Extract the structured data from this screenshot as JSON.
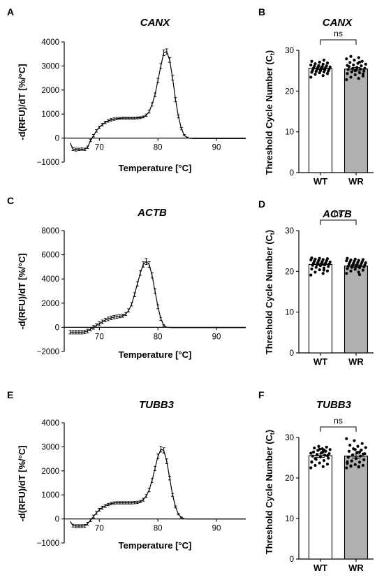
{
  "chart_data": [
    {
      "panel": "A",
      "type": "line",
      "title": "CANX",
      "xlabel": "Temperature [°C]",
      "ylabel": "-d(RFU)/dT [%/°C]",
      "xlim": [
        64,
        95
      ],
      "ylim": [
        -1000,
        4000
      ],
      "xticks": [
        70,
        80,
        90
      ],
      "xtick_labels": [
        "70",
        "80",
        "90"
      ],
      "yticks": [
        -1000,
        0,
        1000,
        2000,
        3000,
        4000
      ],
      "ytick_labels": [
        "−1000",
        "0",
        "1000",
        "2000",
        "3000",
        "4000"
      ],
      "x": [
        65,
        65.5,
        66,
        66.5,
        67,
        67.5,
        68,
        68.5,
        69,
        69.5,
        70,
        70.5,
        71,
        71.5,
        72,
        72.5,
        73,
        73.5,
        74,
        74.5,
        75,
        75.5,
        76,
        76.5,
        77,
        77.5,
        78,
        78.5,
        79,
        79.5,
        80,
        80.5,
        81,
        81.5,
        82,
        82.5,
        83,
        83.5,
        84,
        84.5,
        85,
        85.5,
        86,
        86.5,
        87,
        87.5,
        88,
        88.5,
        89,
        89.5,
        90,
        90.5,
        91,
        91.5,
        92,
        92.5,
        93,
        93.5,
        94,
        94.5,
        95
      ],
      "y": [
        -200,
        -460,
        -480,
        -470,
        -460,
        -470,
        -380,
        -100,
        100,
        300,
        450,
        560,
        650,
        710,
        760,
        790,
        810,
        820,
        830,
        830,
        830,
        830,
        830,
        840,
        850,
        880,
        950,
        1100,
        1400,
        1800,
        2400,
        3000,
        3550,
        3600,
        3250,
        2500,
        1600,
        900,
        400,
        120,
        20,
        -10,
        -20,
        -20,
        -20,
        -20,
        -20,
        -20,
        -20,
        -20,
        -20,
        -20,
        -20,
        -20,
        -20,
        -20,
        -20,
        -20,
        -20,
        -20,
        -20
      ],
      "err": [
        0,
        60,
        60,
        50,
        50,
        50,
        50,
        50,
        50,
        50,
        50,
        50,
        50,
        50,
        50,
        50,
        50,
        40,
        40,
        40,
        40,
        40,
        40,
        40,
        40,
        40,
        50,
        60,
        70,
        80,
        90,
        100,
        120,
        110,
        100,
        90,
        80,
        60,
        40,
        30,
        20,
        0,
        0,
        0,
        0,
        0,
        0,
        0,
        0,
        0,
        0,
        0,
        0,
        0,
        0,
        0,
        0,
        0,
        0,
        0,
        0
      ]
    },
    {
      "panel": "B",
      "type": "bar",
      "title": "CANX",
      "ylabel": "Threshold Cycle Number (C",
      "ylabel_sub": "t",
      "ylabel_close": ")",
      "categories": [
        "WT",
        "WR"
      ],
      "values": [
        25.6,
        25.4
      ],
      "sem": [
        0.3,
        0.4
      ],
      "bar_fill": [
        "#ffffff",
        "#b0b0b0"
      ],
      "ylim": [
        0,
        30
      ],
      "yticks": [
        0,
        10,
        20,
        30
      ],
      "ytick_labels": [
        "0",
        "10",
        "20",
        "30"
      ],
      "significance": "ns",
      "points": [
        [
          23.4,
          23.8,
          24.1,
          24.3,
          24.5,
          24.6,
          24.7,
          24.8,
          24.9,
          25.0,
          25.1,
          25.2,
          25.3,
          25.4,
          25.5,
          25.6,
          25.7,
          25.8,
          25.9,
          26.0,
          26.1,
          26.2,
          26.3,
          26.4,
          26.6,
          26.7,
          26.9,
          27.1,
          27.3,
          27.6
        ],
        [
          22.8,
          23.1,
          23.4,
          23.7,
          24.0,
          24.3,
          24.5,
          24.7,
          24.9,
          25.1,
          25.3,
          25.4,
          25.5,
          25.6,
          25.8,
          26.0,
          26.2,
          26.4,
          26.6,
          26.8,
          27.0,
          27.3,
          27.6,
          27.9,
          28.2,
          28.5,
          24.2,
          25.0,
          26.3,
          27.1
        ]
      ]
    },
    {
      "panel": "C",
      "type": "line",
      "title": "ACTB",
      "xlabel": "Temperature [°C]",
      "ylabel": "-d(RFU)/dT [%/°C]",
      "xlim": [
        64,
        95
      ],
      "ylim": [
        -2000,
        8000
      ],
      "xticks": [
        70,
        80,
        90
      ],
      "xtick_labels": [
        "70",
        "80",
        "90"
      ],
      "yticks": [
        -2000,
        0,
        2000,
        4000,
        6000,
        8000
      ],
      "ytick_labels": [
        "−2000",
        "0",
        "2000",
        "4000",
        "6000",
        "8000"
      ],
      "x": [
        65,
        65.5,
        66,
        66.5,
        67,
        67.5,
        68,
        68.5,
        69,
        69.5,
        70,
        70.5,
        71,
        71.5,
        72,
        72.5,
        73,
        73.5,
        74,
        74.5,
        75,
        75.5,
        76,
        76.5,
        77,
        77.5,
        78,
        78.5,
        79,
        79.5,
        80,
        80.5,
        81,
        81.5,
        82,
        82.5,
        83,
        83.5,
        84,
        84.5,
        85,
        85.5,
        86,
        86.5,
        87,
        87.5,
        88,
        88.5,
        89,
        89.5,
        90,
        90.5,
        91,
        91.5,
        92,
        92.5,
        93,
        93.5,
        94,
        94.5,
        95
      ],
      "y": [
        -400,
        -400,
        -400,
        -400,
        -400,
        -380,
        -300,
        -150,
        0,
        150,
        300,
        450,
        600,
        700,
        780,
        840,
        880,
        920,
        960,
        1100,
        1400,
        1900,
        2700,
        3600,
        4500,
        5200,
        5450,
        5200,
        4300,
        3000,
        1700,
        700,
        150,
        0,
        -20,
        -30,
        -30,
        -30,
        -30,
        -30,
        -30,
        -30,
        -30,
        -30,
        -30,
        -30,
        -30,
        -30,
        -30,
        -30,
        -30,
        -30,
        -30,
        -30,
        -30,
        -30,
        -30,
        -30,
        -30,
        -30,
        -30
      ],
      "err": [
        150,
        150,
        150,
        150,
        150,
        150,
        150,
        150,
        150,
        150,
        150,
        150,
        150,
        150,
        150,
        140,
        140,
        130,
        130,
        130,
        130,
        140,
        160,
        180,
        200,
        220,
        250,
        240,
        220,
        200,
        160,
        120,
        60,
        0,
        0,
        0,
        0,
        0,
        0,
        0,
        0,
        0,
        0,
        0,
        0,
        0,
        0,
        0,
        0,
        0,
        0,
        0,
        0,
        0,
        0,
        0,
        0,
        0,
        0,
        0,
        0
      ]
    },
    {
      "panel": "D",
      "type": "bar",
      "title": "ACTB",
      "ylabel": "Threshold Cycle Number (C",
      "ylabel_sub": "t",
      "ylabel_close": ")",
      "categories": [
        "WT",
        "WR"
      ],
      "values": [
        21.7,
        21.3
      ],
      "sem": [
        0.3,
        0.3
      ],
      "bar_fill": [
        "#ffffff",
        "#b0b0b0"
      ],
      "ylim": [
        0,
        30
      ],
      "yticks": [
        0,
        10,
        20,
        30
      ],
      "ytick_labels": [
        "0",
        "10",
        "20",
        "30"
      ],
      "significance": "ns",
      "points": [
        [
          19.1,
          19.5,
          19.8,
          20.1,
          20.4,
          20.6,
          20.8,
          21.0,
          21.2,
          21.4,
          21.5,
          21.6,
          21.7,
          21.8,
          21.9,
          22.0,
          22.1,
          22.2,
          22.3,
          22.4,
          22.5,
          22.6,
          22.7,
          22.8,
          22.9,
          23.0,
          23.1,
          23.2,
          23.3,
          20.3
        ],
        [
          19.5,
          19.8,
          20.1,
          20.3,
          20.5,
          20.7,
          20.9,
          21.0,
          21.1,
          21.2,
          21.3,
          21.4,
          21.5,
          21.6,
          21.7,
          21.8,
          21.9,
          22.0,
          22.1,
          22.2,
          22.3,
          22.4,
          22.5,
          22.6,
          22.7,
          22.8,
          22.9,
          23.0,
          23.2,
          19.2
        ]
      ]
    },
    {
      "panel": "E",
      "type": "line",
      "title": "TUBB3",
      "xlabel": "Temperature [°C]",
      "ylabel": "-d(RFU)/dT [%/°C]",
      "xlim": [
        64,
        95
      ],
      "ylim": [
        -1000,
        4000
      ],
      "xticks": [
        70,
        80,
        90
      ],
      "xtick_labels": [
        "70",
        "80",
        "90"
      ],
      "yticks": [
        -1000,
        0,
        1000,
        2000,
        3000,
        4000
      ],
      "ytick_labels": [
        "−1000",
        "0",
        "1000",
        "2000",
        "3000",
        "4000"
      ],
      "x": [
        65,
        65.5,
        66,
        66.5,
        67,
        67.5,
        68,
        68.5,
        69,
        69.5,
        70,
        70.5,
        71,
        71.5,
        72,
        72.5,
        73,
        73.5,
        74,
        74.5,
        75,
        75.5,
        76,
        76.5,
        77,
        77.5,
        78,
        78.5,
        79,
        79.5,
        80,
        80.5,
        81,
        81.5,
        82,
        82.5,
        83,
        83.5,
        84,
        84.5,
        85,
        85.5,
        86,
        86.5,
        87,
        87.5,
        88,
        88.5,
        89,
        89.5,
        90,
        90.5,
        91,
        91.5,
        92,
        92.5,
        93,
        93.5,
        94,
        94.5,
        95
      ],
      "y": [
        -100,
        -280,
        -300,
        -300,
        -300,
        -290,
        -200,
        -50,
        100,
        250,
        380,
        470,
        540,
        600,
        640,
        660,
        670,
        670,
        670,
        670,
        670,
        670,
        680,
        690,
        720,
        800,
        950,
        1200,
        1600,
        2100,
        2600,
        2900,
        2850,
        2400,
        1700,
        1000,
        500,
        200,
        60,
        10,
        0,
        0,
        0,
        0,
        0,
        0,
        0,
        0,
        0,
        0,
        0,
        0,
        0,
        0,
        0,
        0,
        0,
        0,
        0,
        0,
        0
      ],
      "err": [
        0,
        60,
        60,
        60,
        60,
        60,
        60,
        60,
        60,
        60,
        60,
        60,
        60,
        50,
        50,
        50,
        50,
        50,
        50,
        50,
        50,
        50,
        50,
        50,
        50,
        60,
        60,
        70,
        80,
        90,
        100,
        120,
        110,
        100,
        80,
        60,
        40,
        30,
        20,
        0,
        0,
        0,
        0,
        0,
        0,
        0,
        0,
        0,
        0,
        0,
        0,
        0,
        0,
        0,
        0,
        0,
        0,
        0,
        0,
        0,
        0
      ]
    },
    {
      "panel": "F",
      "type": "bar",
      "title": "TUBB3",
      "ylabel": "Threshold Cycle Number (C",
      "ylabel_sub": "t",
      "ylabel_close": ")",
      "categories": [
        "WT",
        "WR"
      ],
      "values": [
        25.5,
        25.4
      ],
      "sem": [
        0.4,
        0.5
      ],
      "bar_fill": [
        "#ffffff",
        "#b0b0b0"
      ],
      "ylim": [
        0,
        30
      ],
      "yticks": [
        0,
        10,
        20,
        30
      ],
      "ytick_labels": [
        "0",
        "10",
        "20",
        "30"
      ],
      "significance": "ns",
      "points": [
        [
          22.5,
          22.8,
          23.1,
          23.4,
          23.7,
          24.0,
          24.3,
          24.6,
          24.9,
          25.2,
          25.4,
          25.6,
          25.8,
          26.0,
          26.2,
          26.4,
          26.6,
          26.8,
          27.0,
          27.2,
          27.4,
          27.6,
          27.8,
          26.1,
          26.5,
          24.8,
          25.5,
          27.1,
          23.9,
          26.9
        ],
        [
          22.5,
          22.7,
          22.9,
          23.1,
          23.3,
          23.6,
          23.9,
          24.2,
          24.5,
          24.8,
          25.1,
          25.4,
          25.7,
          26.0,
          26.3,
          26.6,
          26.9,
          27.2,
          27.5,
          27.8,
          28.1,
          28.5,
          29.2,
          29.7,
          22.8,
          23.0,
          25.9,
          27.0,
          24.0,
          26.4
        ]
      ]
    }
  ]
}
